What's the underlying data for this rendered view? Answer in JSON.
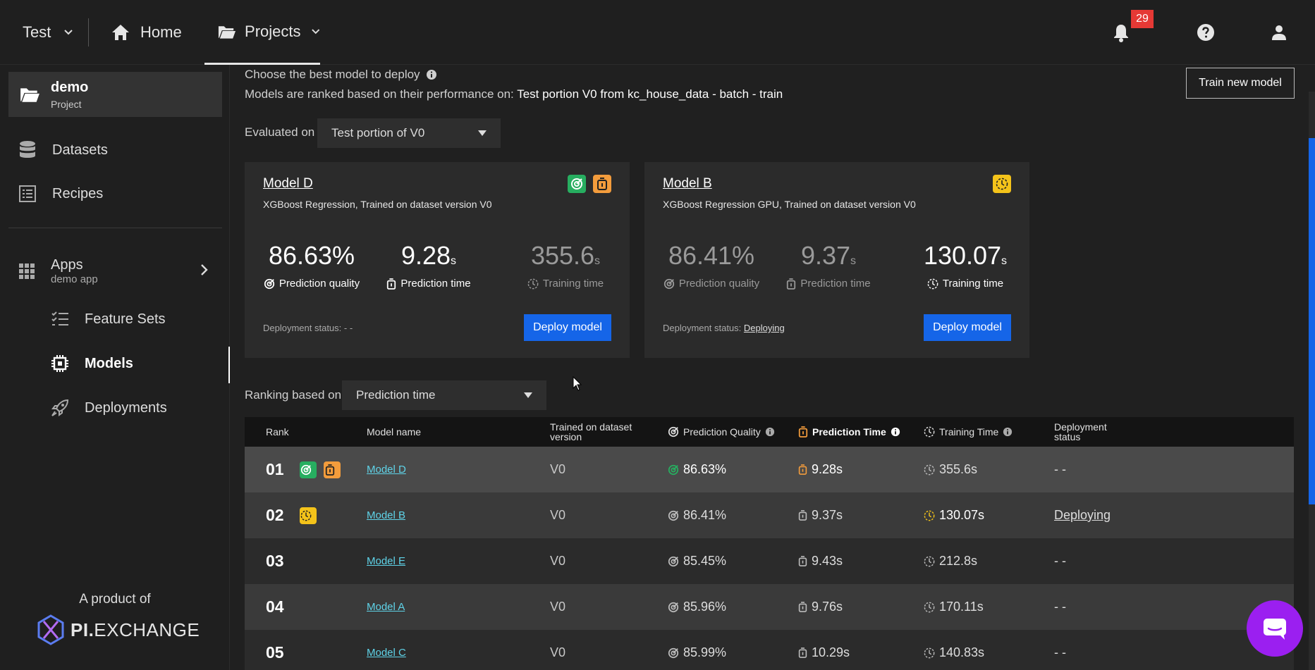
{
  "topbar": {
    "org": "Test",
    "home": "Home",
    "projects": "Projects",
    "notifications_count": "29"
  },
  "sidebar": {
    "project_name": "demo",
    "project_type": "Project",
    "datasets": "Datasets",
    "recipes": "Recipes",
    "apps": "Apps",
    "apps_sub": "demo app",
    "feature_sets": "Feature Sets",
    "models": "Models",
    "deployments": "Deployments",
    "product_of": "A product of",
    "logo_bold": "PI.",
    "logo_rest": "EXCHANGE"
  },
  "main": {
    "heading": "Choose the best model to deploy",
    "ranked_prefix": "Models are ranked based on their performance on: ",
    "ranked_value": "Test portion V0 from kc_house_data - batch - train",
    "train_button": "Train new model",
    "evaluated_on_label": "Evaluated on",
    "evaluated_on_value": "Test portion of V0",
    "ranking_label": "Ranking based on",
    "ranking_value": "Prediction time"
  },
  "cards": [
    {
      "name": "Model D",
      "desc": "XGBoost Regression, Trained on dataset version V0",
      "quality": "86.63%",
      "quality_label": "Prediction quality",
      "pred_time": "9.28",
      "pred_time_label": "Prediction time",
      "train_time": "355.6",
      "train_time_label": "Training time",
      "unit": "s",
      "deploy_status_label": "Deployment status: ",
      "deploy_status": "- -",
      "deploy_button": "Deploy model"
    },
    {
      "name": "Model B",
      "desc": "XGBoost Regression GPU, Trained on dataset version V0",
      "quality": "86.41%",
      "quality_label": "Prediction quality",
      "pred_time": "9.37",
      "pred_time_label": "Prediction time",
      "train_time": "130.07",
      "train_time_label": "Training time",
      "unit": "s",
      "deploy_status_label": "Deployment status: ",
      "deploy_status": "Deploying",
      "deploy_button": "Deploy model"
    }
  ],
  "table": {
    "headers": {
      "rank": "Rank",
      "model_name": "Model name",
      "trained_on_1": "Trained on dataset",
      "trained_on_2": "version",
      "pred_quality": "Prediction Quality",
      "pred_time": "Prediction Time",
      "train_time": "Training Time",
      "deploy_1": "Deployment",
      "deploy_2": "status"
    },
    "rows": [
      {
        "rank": "01",
        "name": "Model D",
        "version": "V0",
        "quality": "86.63%",
        "pred_time": "9.28s",
        "train_time": "355.6s",
        "status": "- -"
      },
      {
        "rank": "02",
        "name": "Model B",
        "version": "V0",
        "quality": "86.41%",
        "pred_time": "9.37s",
        "train_time": "130.07s",
        "status": "Deploying"
      },
      {
        "rank": "03",
        "name": "Model E",
        "version": "V0",
        "quality": "85.45%",
        "pred_time": "9.43s",
        "train_time": "212.8s",
        "status": "- -"
      },
      {
        "rank": "04",
        "name": "Model A",
        "version": "V0",
        "quality": "85.96%",
        "pred_time": "9.76s",
        "train_time": "170.11s",
        "status": "- -"
      },
      {
        "rank": "05",
        "name": "Model C",
        "version": "V0",
        "quality": "85.99%",
        "pred_time": "10.29s",
        "train_time": "140.83s",
        "status": "- -"
      }
    ]
  },
  "colors": {
    "accent_blue": "#1565e8",
    "quality_green": "#27ae60",
    "time_orange": "#f39c3c",
    "training_yellow": "#f4c31a",
    "badge_red": "#e53935",
    "chat_purple": "#9b1ff0"
  },
  "icons": [
    "home-icon",
    "folder-icon",
    "bell-icon",
    "help-icon",
    "user-icon",
    "database-icon",
    "recipe-icon",
    "apps-grid-icon",
    "feature-sets-icon",
    "chip-icon",
    "rocket-icon",
    "target-icon",
    "stopwatch-icon",
    "clock-icon",
    "info-icon",
    "chat-icon"
  ]
}
